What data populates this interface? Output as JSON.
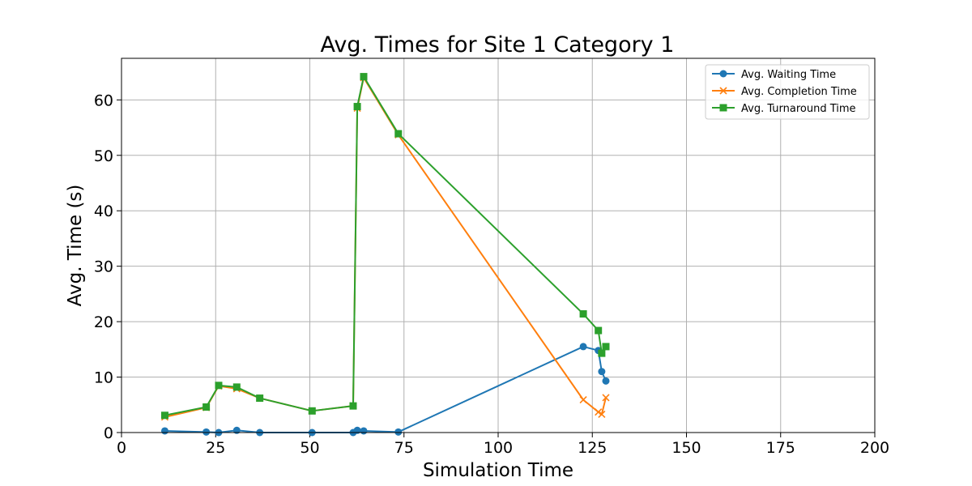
{
  "chart_data": {
    "type": "line",
    "title": "Avg. Times for Site 1 Category 1",
    "xlabel": "Simulation Time",
    "ylabel": "Avg. Time (s)",
    "xlim": [
      0,
      200
    ],
    "ylim": [
      0,
      67.5
    ],
    "xticks": [
      0,
      25,
      50,
      75,
      100,
      125,
      150,
      175,
      200
    ],
    "yticks": [
      0,
      10,
      20,
      30,
      40,
      50,
      60
    ],
    "grid": true,
    "legend_position": "top-right",
    "x": [
      11.5,
      22.5,
      25.8,
      30.6,
      36.7,
      50.6,
      61.5,
      62.6,
      64.3,
      73.5,
      122.6,
      126.6,
      127.5,
      128.6
    ],
    "series": [
      {
        "name": "Avg. Waiting Time",
        "color": "#1f77b4",
        "marker": "circle",
        "values": [
          0.3,
          0.1,
          0.0,
          0.4,
          0.0,
          0.0,
          0.0,
          0.4,
          0.3,
          0.1,
          15.5,
          14.8,
          11.0,
          9.3
        ]
      },
      {
        "name": "Avg. Completion Time",
        "color": "#ff7f0e",
        "marker": "x",
        "values": [
          2.8,
          4.5,
          8.4,
          7.9,
          6.2,
          3.9,
          4.8,
          58.5,
          64.0,
          53.7,
          5.9,
          3.7,
          3.3,
          6.3
        ]
      },
      {
        "name": "Avg. Turnaround Time",
        "color": "#2ca02c",
        "marker": "square",
        "values": [
          3.1,
          4.6,
          8.5,
          8.2,
          6.2,
          3.9,
          4.8,
          58.8,
          64.2,
          53.9,
          21.4,
          18.4,
          14.3,
          15.5
        ]
      }
    ]
  }
}
